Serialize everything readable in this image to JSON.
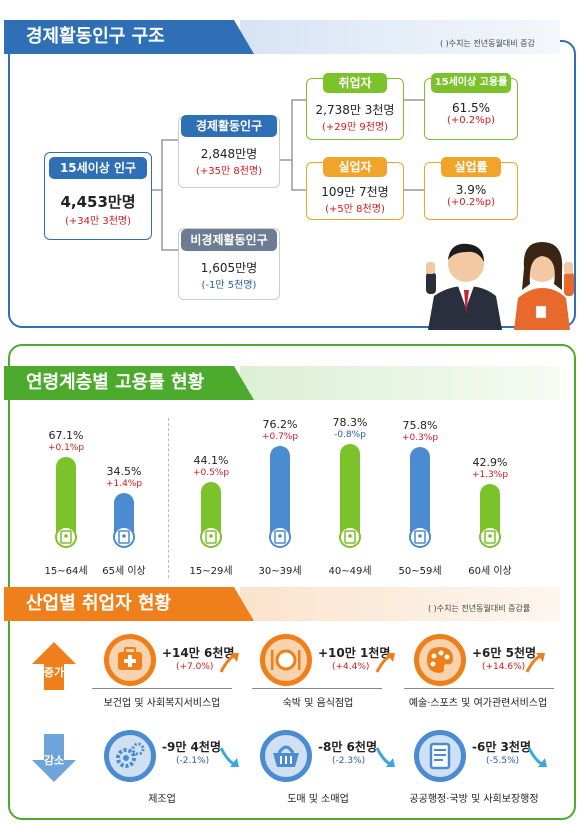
{
  "section1": {
    "title": "경제활동인구 구조",
    "note": "( )수치는 전년동월대비 증감",
    "pop15": {
      "label": "15세이상 인구",
      "value": "4,453만명",
      "change": "(+34만 3천명)"
    },
    "active": {
      "label": "경제활동인구",
      "value": "2,848만명",
      "change": "(+35만 8천명)"
    },
    "inactive": {
      "label": "비경제활동인구",
      "value": "1,605만명",
      "change": "(-1만 5천명)"
    },
    "employed": {
      "label": "취업자",
      "value": "2,738만 3천명",
      "change": "(+29만 9천명)"
    },
    "emp_rate": {
      "label": "15세이상 고용률",
      "value": "61.5%",
      "change": "(+0.2%p)"
    },
    "unemployed": {
      "label": "실업자",
      "value": "109만 7천명",
      "change": "(+5만 8천명)"
    },
    "unemp_rate": {
      "label": "실업률",
      "value": "3.9%",
      "change": "(+0.2%p)"
    }
  },
  "section2": {
    "title": "연령계층별 고용률 현황",
    "chart_data": {
      "type": "bar",
      "categories": [
        "15~64세",
        "65세 이상",
        "15~29세",
        "30~39세",
        "40~49세",
        "50~59세",
        "60세 이상"
      ],
      "values": [
        67.1,
        34.5,
        44.1,
        76.2,
        78.3,
        75.8,
        42.9
      ],
      "value_labels": [
        "67.1%",
        "34.5%",
        "44.1%",
        "76.2%",
        "78.3%",
        "75.8%",
        "42.9%"
      ],
      "changes": [
        "+0.1%p",
        "+1.4%p",
        "+0.5%p",
        "+0.7%p",
        "-0.8%p",
        "+0.3%p",
        "+1.3%p"
      ],
      "colors": [
        "#7cc22a",
        "#4a8bd1",
        "#7cc22a",
        "#4a8bd1",
        "#7cc22a",
        "#4a8bd1",
        "#7cc22a"
      ],
      "ylim": [
        0,
        100
      ]
    }
  },
  "section3": {
    "title": "산업별 취업자 현황",
    "note": "( )수치는 전년동월대비 증감률",
    "increase_label": "증가",
    "decrease_label": "감소",
    "increase": [
      {
        "name": "보건업 및 사회복지서비스업",
        "value": "+14만 6천명",
        "change": "(+7.0%)",
        "icon": "first-aid-kit-icon"
      },
      {
        "name": "숙박 및 음식점업",
        "value": "+10만 1천명",
        "change": "(+4.4%)",
        "icon": "dining-plate-icon"
      },
      {
        "name": "예술·스포츠 및 여가관련서비스업",
        "value": "+6만 5천명",
        "change": "(+14.6%)",
        "icon": "art-palette-icon"
      }
    ],
    "decrease": [
      {
        "name": "제조업",
        "value": "-9만 4천명",
        "change": "(-2.1%)",
        "icon": "gears-icon"
      },
      {
        "name": "도매 및 소매업",
        "value": "-8만 6천명",
        "change": "(-2.3%)",
        "icon": "shopping-basket-icon"
      },
      {
        "name": "공공행정·국방 및 사회보장행정",
        "value": "-6만 3천명",
        "change": "(-5.5%)",
        "icon": "document-scroll-icon"
      }
    ],
    "colors": {
      "increase": "#ef7f1a",
      "decrease": "#4a8bd1"
    }
  }
}
